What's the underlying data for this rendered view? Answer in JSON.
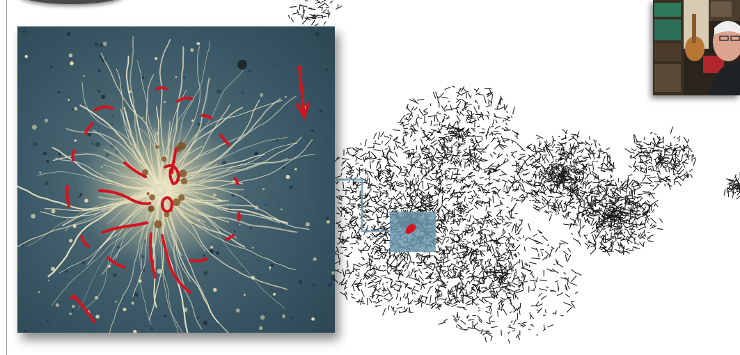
{
  "slide": {
    "photo_label": "micrograph-astrocyte",
    "trace_label": "neuron-tracing",
    "webcam_label": "presenter-webcam"
  },
  "colors": {
    "ink": "#d4141e",
    "trace": "#1a1a1a",
    "photo_bg": "#3b5866",
    "cell": "#efe9c8",
    "highlight": "#6d99b0"
  },
  "icons": [
    "arrow-annotation-icon",
    "arrow-annotation-icon",
    "circle-annotation-icon"
  ]
}
